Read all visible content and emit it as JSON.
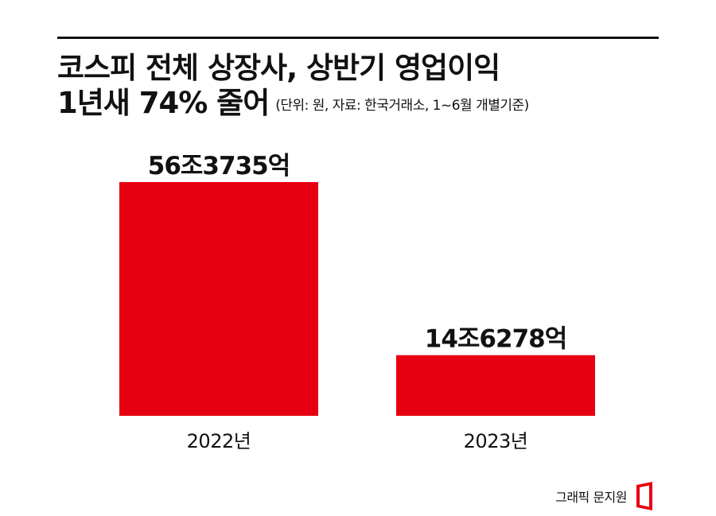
{
  "title": {
    "line1": "코스피 전체 상장사, 상반기 영업이익",
    "line2": "1년새 74% 줄어",
    "source_note": "(단위: 원, 자료: 한국거래소, 1~6월 개별기준)"
  },
  "chart_data": {
    "type": "bar",
    "categories": [
      "2022년",
      "2023년"
    ],
    "values": [
      563735,
      146278
    ],
    "value_unit": "억 원",
    "data_labels": [
      "56조3735억",
      "14조6278억"
    ],
    "ylim": [
      0,
      563735
    ],
    "bar_color": "#e60012",
    "grid": false,
    "legend": "none"
  },
  "footer": {
    "credit": "그래픽 문지원",
    "logo_icon": "red-bracket-logo-icon",
    "logo_color": "#e60012"
  }
}
